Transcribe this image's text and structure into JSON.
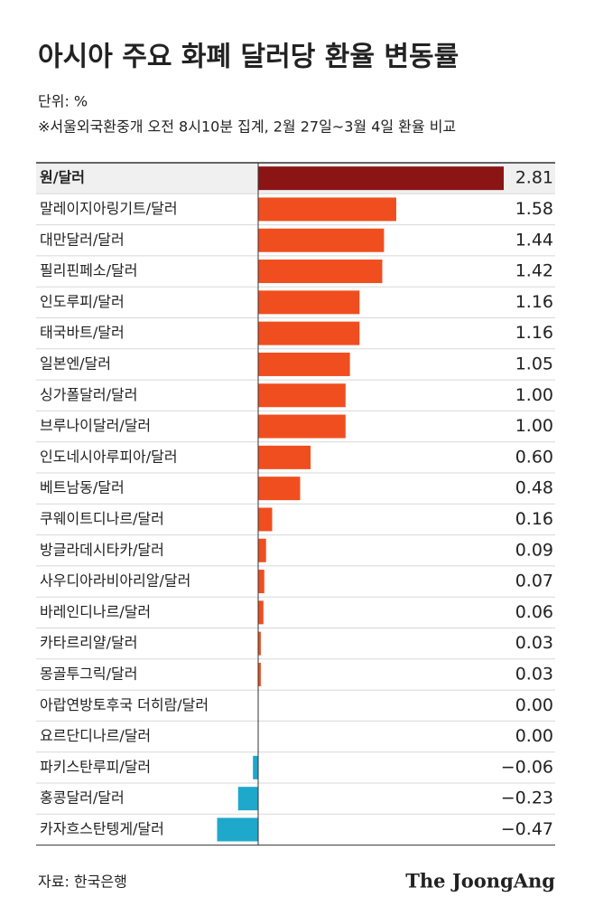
{
  "chart_data": {
    "type": "bar",
    "orientation": "horizontal",
    "title": "아시아 주요 화폐 달러당 환율 변동률",
    "unit": "단위: %",
    "note": "※서울외국환중개 오전 8시10분 집계, 2월 27일~3월 4일 환율 비교",
    "categories": [
      "원/달러",
      "말레이지아링기트/달러",
      "대만달러/달러",
      "필리핀페소/달러",
      "인도루피/달러",
      "태국바트/달러",
      "일본엔/달러",
      "싱가폴달러/달러",
      "브루나이달러/달러",
      "인도네시아루피아/달러",
      "베트남동/달러",
      "쿠웨이트디나르/달러",
      "방글라데시타카/달러",
      "사우디아라비아리알/달러",
      "바레인디나르/달러",
      "카타르리얄/달러",
      "몽골투그릭/달러",
      "아랍연방토후국 더히람/달러",
      "요르단디나르/달러",
      "파키스탄루피/달러",
      "홍콩달러/달러",
      "카자흐스탄텡게/달러"
    ],
    "values": [
      2.81,
      1.58,
      1.44,
      1.42,
      1.16,
      1.16,
      1.05,
      1.0,
      1.0,
      0.6,
      0.48,
      0.16,
      0.09,
      0.07,
      0.06,
      0.03,
      0.03,
      0.0,
      0.0,
      -0.06,
      -0.23,
      -0.47
    ],
    "value_labels": [
      "2.81",
      "1.58",
      "1.44",
      "1.42",
      "1.16",
      "1.16",
      "1.05",
      "1.00",
      "1.00",
      "0.60",
      "0.48",
      "0.16",
      "0.09",
      "0.07",
      "0.06",
      "0.03",
      "0.03",
      "0.00",
      "0.00",
      "−0.06",
      "−0.23",
      "−0.47"
    ],
    "highlight_index": 0,
    "highlight_color": "#8b1414",
    "positive_color": "#f04e1f",
    "negative_color": "#1ea8cc",
    "zero_color": "#888888",
    "source": "자료: 한국은행",
    "credit": "The JoongAng"
  }
}
